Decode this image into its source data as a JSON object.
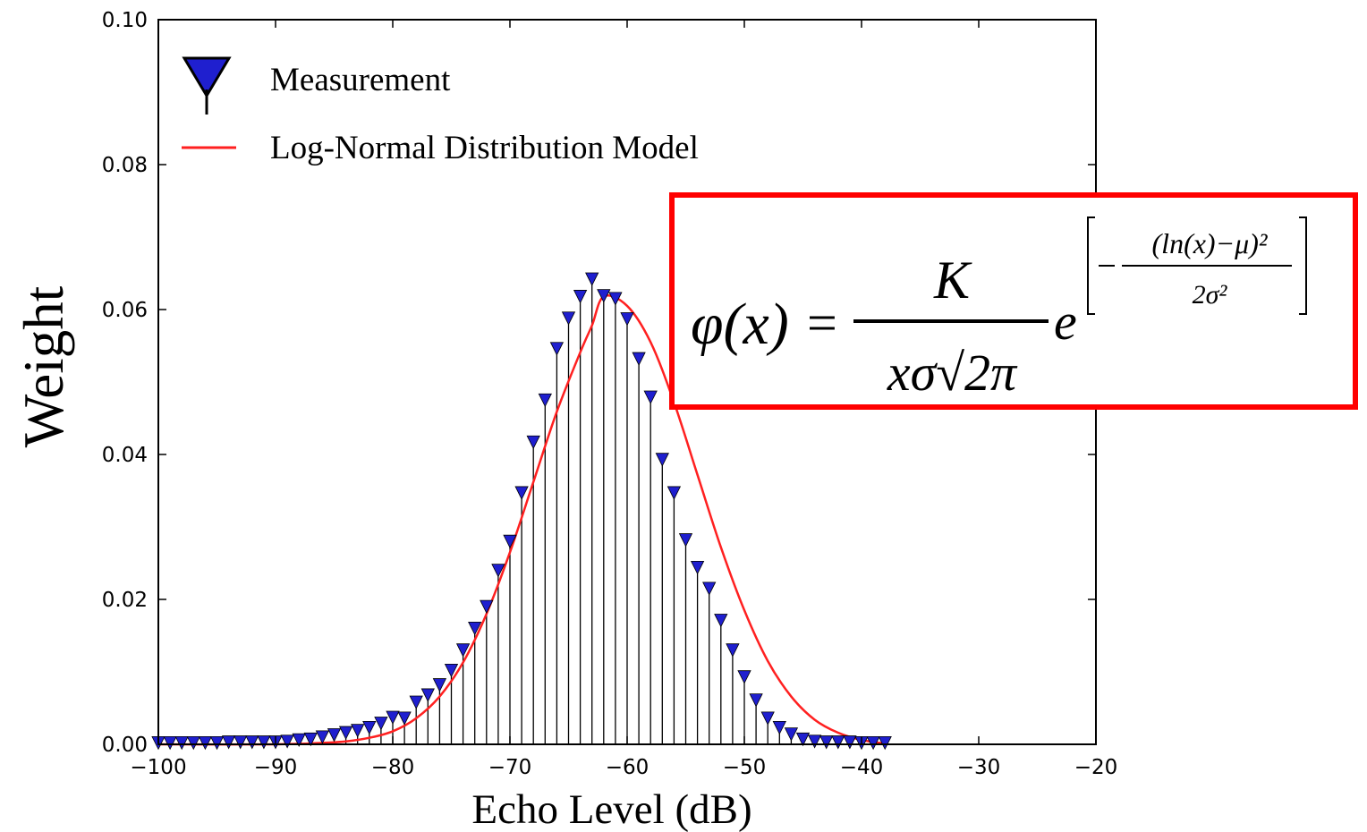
{
  "chart_data": {
    "type": "line",
    "title": "",
    "xlabel": "Echo Level (dB)",
    "ylabel": "Weight",
    "xlim": [
      -100,
      -20
    ],
    "ylim": [
      0.0,
      0.1
    ],
    "x_ticks": [
      -100,
      -90,
      -80,
      -70,
      -60,
      -50,
      -40,
      -30,
      -20
    ],
    "x_tick_labels": [
      "−100",
      "−90",
      "−80",
      "−70",
      "−60",
      "−50",
      "−40",
      "−30",
      "−20"
    ],
    "y_ticks": [
      0.0,
      0.02,
      0.04,
      0.06,
      0.08,
      0.1
    ],
    "y_tick_labels": [
      "0.00",
      "0.02",
      "0.04",
      "0.06",
      "0.08",
      "0.10"
    ],
    "grid": false,
    "legend_position": "top-left",
    "series": [
      {
        "name": "Measurement",
        "kind": "stem",
        "marker": "triangle-down",
        "color": "#1f1fcf",
        "x": [
          -100,
          -99,
          -98,
          -97,
          -96,
          -95,
          -94,
          -93,
          -92,
          -91,
          -90,
          -89,
          -88,
          -87,
          -86,
          -85,
          -84,
          -83,
          -82,
          -81,
          -80,
          -79,
          -78,
          -77,
          -76,
          -75,
          -74,
          -73,
          -72,
          -71,
          -70,
          -69,
          -68,
          -67,
          -66,
          -65,
          -64,
          -63,
          -62,
          -61,
          -60,
          -59,
          -58,
          -57,
          -56,
          -55,
          -54,
          -53,
          -52,
          -51,
          -50,
          -49,
          -48,
          -47,
          -46,
          -45,
          -44,
          -43,
          -42,
          -41,
          -40,
          -39,
          -38
        ],
        "y": [
          0.0002,
          0.0002,
          0.0002,
          0.0002,
          0.0002,
          0.0002,
          0.0003,
          0.0003,
          0.0003,
          0.0003,
          0.0003,
          0.0004,
          0.0006,
          0.0007,
          0.001,
          0.0013,
          0.0016,
          0.0019,
          0.0023,
          0.0029,
          0.0037,
          0.0036,
          0.0058,
          0.0068,
          0.0082,
          0.0102,
          0.013,
          0.016,
          0.019,
          0.024,
          0.028,
          0.0347,
          0.0417,
          0.0475,
          0.0546,
          0.0588,
          0.0618,
          0.0642,
          0.0619,
          0.0615,
          0.0587,
          0.0532,
          0.0479,
          0.0393,
          0.0347,
          0.0282,
          0.0244,
          0.0215,
          0.0171,
          0.013,
          0.0093,
          0.0061,
          0.0036,
          0.0023,
          0.0014,
          0.0007,
          0.0004,
          0.0003,
          0.0003,
          0.0003,
          0.0002,
          0.0002,
          0.0002
        ]
      },
      {
        "name": "Log-Normal Distribution Model",
        "kind": "line",
        "color": "#ff2020",
        "x": [
          -100,
          -90,
          -86,
          -84,
          -82,
          -80,
          -78,
          -76,
          -74,
          -72,
          -70,
          -68,
          -66,
          -64,
          -63,
          -62,
          -60,
          -58,
          -56,
          -54,
          -52,
          -50,
          -48,
          -46,
          -44,
          -42,
          -40,
          -38
        ],
        "y": [
          0.0,
          0.0,
          0.0002,
          0.0004,
          0.0009,
          0.0018,
          0.0036,
          0.0066,
          0.0113,
          0.018,
          0.0265,
          0.0362,
          0.0459,
          0.0541,
          0.0578,
          0.0618,
          0.0605,
          0.0555,
          0.0472,
          0.0372,
          0.0272,
          0.0185,
          0.0115,
          0.0066,
          0.0034,
          0.0016,
          0.0006,
          0.0001
        ]
      }
    ]
  },
  "legend": {
    "items": [
      "Measurement",
      "Log-Normal Distribution Model"
    ]
  },
  "formula": {
    "lhs": "φ(x)",
    "equals": "=",
    "numerator": "K",
    "denominator": "xσ√2π",
    "base": "e",
    "exponent_numerator": "(ln(x)−μ)²",
    "exponent_denominator": "2σ²"
  },
  "colors": {
    "marker_fill": "#1f1fcf",
    "model_line": "#ff2020",
    "highlight_box": "#ff0000",
    "stem": "#000000"
  }
}
